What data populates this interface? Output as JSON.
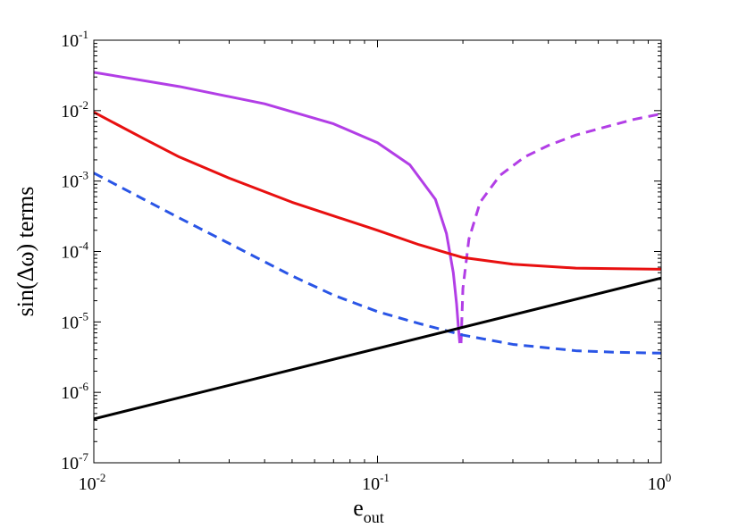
{
  "chart_data": {
    "type": "line",
    "xscale": "log",
    "yscale": "log",
    "xlim": [
      0.01,
      1
    ],
    "ylim": [
      1e-07,
      0.1
    ],
    "grid": false,
    "xlabel": {
      "main": "e",
      "sub": "out"
    },
    "ylabel": "sin(Δω) terms",
    "xticks": [
      {
        "value": 0.01,
        "base": "10",
        "exp": "-2"
      },
      {
        "value": 0.1,
        "base": "10",
        "exp": "-1"
      },
      {
        "value": 1,
        "base": "10",
        "exp": "0"
      }
    ],
    "yticks": [
      {
        "value": 1e-07,
        "base": "10",
        "exp": "-7"
      },
      {
        "value": 1e-06,
        "base": "10",
        "exp": "-6"
      },
      {
        "value": 1e-05,
        "base": "10",
        "exp": "-5"
      },
      {
        "value": 0.0001,
        "base": "10",
        "exp": "-4"
      },
      {
        "value": 0.001,
        "base": "10",
        "exp": "-3"
      },
      {
        "value": 0.01,
        "base": "10",
        "exp": "-2"
      },
      {
        "value": 0.1,
        "base": "10",
        "exp": "-1"
      }
    ],
    "series": [
      {
        "key": "purple-solid",
        "color": "#b23ee6",
        "style": "solid",
        "x": [
          0.01,
          0.02,
          0.04,
          0.07,
          0.1,
          0.13,
          0.16,
          0.175,
          0.185,
          0.19,
          0.193,
          0.195
        ],
        "y": [
          0.035,
          0.022,
          0.0125,
          0.0065,
          0.0035,
          0.0017,
          0.00055,
          0.00018,
          5e-05,
          1.8e-05,
          8e-06,
          5e-06
        ]
      },
      {
        "key": "purple-dashed",
        "color": "#b23ee6",
        "style": "dashed",
        "x": [
          0.197,
          0.2,
          0.21,
          0.23,
          0.27,
          0.33,
          0.4,
          0.5,
          0.65,
          0.8,
          1.0
        ],
        "y": [
          5e-06,
          3e-05,
          0.00015,
          0.0005,
          0.0012,
          0.0022,
          0.0032,
          0.0045,
          0.006,
          0.0075,
          0.009
        ]
      },
      {
        "key": "red-solid",
        "color": "#e81010",
        "style": "solid",
        "x": [
          0.01,
          0.015,
          0.02,
          0.03,
          0.05,
          0.07,
          0.1,
          0.14,
          0.2,
          0.3,
          0.5,
          0.7,
          1.0
        ],
        "y": [
          0.0095,
          0.004,
          0.0022,
          0.0011,
          0.0005,
          0.00032,
          0.0002,
          0.000125,
          8.2e-05,
          6.6e-05,
          5.8e-05,
          5.7e-05,
          5.6e-05
        ]
      },
      {
        "key": "blue-dashed",
        "color": "#2a55e6",
        "style": "dashed",
        "x": [
          0.01,
          0.015,
          0.02,
          0.03,
          0.05,
          0.07,
          0.1,
          0.14,
          0.2,
          0.3,
          0.5,
          0.7,
          1.0
        ],
        "y": [
          0.0013,
          0.00055,
          0.0003,
          0.00013,
          4.5e-05,
          2.4e-05,
          1.4e-05,
          9.5e-06,
          6.5e-06,
          4.8e-06,
          3.9e-06,
          3.7e-06,
          3.6e-06
        ]
      },
      {
        "key": "black-solid",
        "color": "#000000",
        "style": "solid",
        "x": [
          0.01,
          1.0
        ],
        "y": [
          4.2e-07,
          4.2e-05
        ]
      }
    ]
  }
}
